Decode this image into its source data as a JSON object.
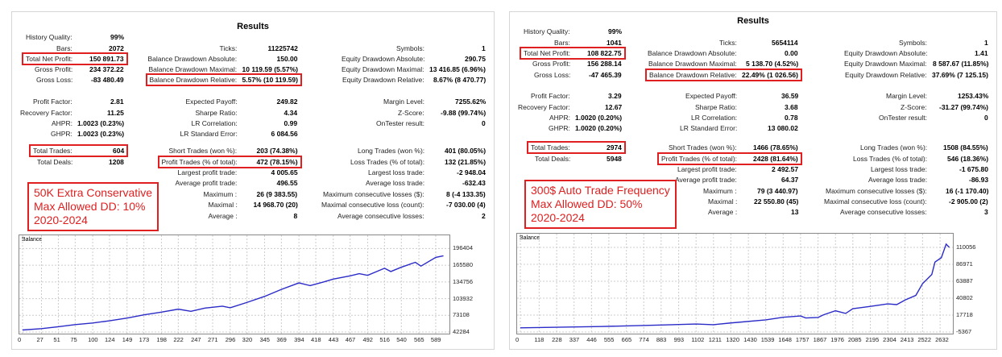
{
  "panels": [
    {
      "title": "Results",
      "note": [
        "50K Extra Conservative",
        "Max Allowed DD: 10%",
        "2020-2024"
      ],
      "rows": [
        [
          [
            "History Quality:",
            "99%"
          ],
          null,
          null
        ],
        [
          [
            "Bars:",
            "2072"
          ],
          [
            "Ticks:",
            "11225742"
          ],
          [
            "Symbols:",
            "1"
          ]
        ],
        [
          [
            "Total Net Profit:",
            "150 891.73",
            true
          ],
          [
            "Balance Drawdown Absolute:",
            "150.00"
          ],
          [
            "Equity Drawdown Absolute:",
            "290.75"
          ]
        ],
        [
          [
            "Gross Profit:",
            "234 372.22"
          ],
          [
            "Balance Drawdown Maximal:",
            "10 119.59 (5.57%)"
          ],
          [
            "Equity Drawdown Maximal:",
            "13 416.85 (6.96%)"
          ]
        ],
        [
          [
            "Gross Loss:",
            "-83 480.49"
          ],
          [
            "Balance Drawdown Relative:",
            "5.57% (10 119.59)",
            true
          ],
          [
            "Equity Drawdown Relative:",
            "8.67% (8 470.77)"
          ]
        ],
        [
          [
            "Profit Factor:",
            "2.81"
          ],
          [
            "Expected Payoff:",
            "249.82"
          ],
          [
            "Margin Level:",
            "7255.62%"
          ]
        ],
        [
          [
            "Recovery Factor:",
            "11.25"
          ],
          [
            "Sharpe Ratio:",
            "4.34"
          ],
          [
            "Z-Score:",
            "-9.88 (99.74%)"
          ]
        ],
        [
          [
            "AHPR:",
            "1.0023 (0.23%)"
          ],
          [
            "LR Correlation:",
            "0.99"
          ],
          [
            "OnTester result:",
            "0"
          ]
        ],
        [
          [
            "GHPR:",
            "1.0023 (0.23%)"
          ],
          [
            "LR Standard Error:",
            "6 084.56"
          ],
          null
        ],
        [
          [
            "Total Trades:",
            "604",
            true
          ],
          [
            "Short Trades (won %):",
            "203 (74.38%)"
          ],
          [
            "Long Trades (won %):",
            "401 (80.05%)"
          ]
        ],
        [
          [
            "Total Deals:",
            "1208"
          ],
          [
            "Profit Trades (% of total):",
            "472 (78.15%)",
            true
          ],
          [
            "Loss Trades (% of total):",
            "132 (21.85%)"
          ]
        ],
        [
          null,
          [
            "Largest profit trade:",
            "4 005.65"
          ],
          [
            "Largest loss trade:",
            "-2 948.04"
          ]
        ],
        [
          null,
          [
            "Average profit trade:",
            "496.55"
          ],
          [
            "Average loss trade:",
            "-632.43"
          ]
        ],
        [
          null,
          [
            "Maximum :",
            "26 (9 383.55)"
          ],
          [
            "Maximum consecutive losses ($):",
            "8 (-4 133.35)"
          ]
        ],
        [
          null,
          [
            "Maximal :",
            "14 968.70 (20)"
          ],
          [
            "Maximal consecutive loss (count):",
            "-7 030.00 (4)"
          ]
        ],
        [
          null,
          [
            "Average :",
            "8"
          ],
          [
            "Average consecutive losses:",
            "2"
          ]
        ]
      ],
      "chart_data": {
        "type": "line",
        "title": "Balance",
        "x_ticks": [
          "0",
          "27",
          "51",
          "75",
          "100",
          "124",
          "149",
          "173",
          "198",
          "222",
          "247",
          "271",
          "296",
          "320",
          "345",
          "369",
          "394",
          "418",
          "443",
          "467",
          "492",
          "516",
          "540",
          "565",
          "589"
        ],
        "y_ticks": [
          "196404",
          "165580",
          "134756",
          "103932",
          "73108",
          "42284"
        ],
        "xlim": [
          0,
          604
        ],
        "ylim": [
          42284,
          203000
        ],
        "x": [
          0,
          27,
          51,
          75,
          100,
          124,
          149,
          173,
          198,
          222,
          240,
          260,
          285,
          296,
          320,
          345,
          369,
          394,
          410,
          430,
          443,
          467,
          480,
          492,
          516,
          525,
          540,
          560,
          568,
          589,
          600
        ],
        "y": [
          46000,
          48500,
          52000,
          56000,
          59000,
          63000,
          68000,
          74000,
          79000,
          84500,
          80500,
          86500,
          90000,
          87000,
          97000,
          108000,
          121000,
          133000,
          128000,
          135000,
          140000,
          146000,
          150000,
          147000,
          160000,
          154000,
          162000,
          171000,
          164000,
          180000,
          183000
        ]
      }
    },
    {
      "title": "Results",
      "note": [
        "300$ Auto Trade Frequency",
        "Max Allowed DD: 50%",
        "2020-2024"
      ],
      "rows": [
        [
          [
            "History Quality:",
            "99%"
          ],
          null,
          null
        ],
        [
          [
            "Bars:",
            "1041"
          ],
          [
            "Ticks:",
            "5654114"
          ],
          [
            "Symbols:",
            "1"
          ]
        ],
        [
          [
            "Total Net Profit:",
            "108 822.75",
            true
          ],
          [
            "Balance Drawdown Absolute:",
            "0.00"
          ],
          [
            "Equity Drawdown Absolute:",
            "1.41"
          ]
        ],
        [
          [
            "Gross Profit:",
            "156 288.14"
          ],
          [
            "Balance Drawdown Maximal:",
            "5 138.70 (4.52%)"
          ],
          [
            "Equity Drawdown Maximal:",
            "8 587.67 (11.85%)"
          ]
        ],
        [
          [
            "Gross Loss:",
            "-47 465.39"
          ],
          [
            "Balance Drawdown Relative:",
            "22.49% (1 026.56)",
            true
          ],
          [
            "Equity Drawdown Relative:",
            "37.69% (7 125.15)"
          ]
        ],
        [
          [
            "Profit Factor:",
            "3.29"
          ],
          [
            "Expected Payoff:",
            "36.59"
          ],
          [
            "Margin Level:",
            "1253.43%"
          ]
        ],
        [
          [
            "Recovery Factor:",
            "12.67"
          ],
          [
            "Sharpe Ratio:",
            "3.68"
          ],
          [
            "Z-Score:",
            "-31.27 (99.74%)"
          ]
        ],
        [
          [
            "AHPR:",
            "1.0020 (0.20%)"
          ],
          [
            "LR Correlation:",
            "0.78"
          ],
          [
            "OnTester result:",
            "0"
          ]
        ],
        [
          [
            "GHPR:",
            "1.0020 (0.20%)"
          ],
          [
            "LR Standard Error:",
            "13 080.02"
          ],
          null
        ],
        [
          [
            "Total Trades:",
            "2974",
            true
          ],
          [
            "Short Trades (won %):",
            "1466 (78.65%)"
          ],
          [
            "Long Trades (won %):",
            "1508 (84.55%)"
          ]
        ],
        [
          [
            "Total Deals:",
            "5948"
          ],
          [
            "Profit Trades (% of total):",
            "2428 (81.64%)",
            true
          ],
          [
            "Loss Trades (% of total):",
            "546 (18.36%)"
          ]
        ],
        [
          null,
          [
            "Largest profit trade:",
            "2 492.57"
          ],
          [
            "Largest loss trade:",
            "-1 675.80"
          ]
        ],
        [
          null,
          [
            "Average profit trade:",
            "64.37"
          ],
          [
            "Average loss trade:",
            "-86.93"
          ]
        ],
        [
          null,
          [
            "Maximum :",
            "79 (3 440.97)"
          ],
          [
            "Maximum consecutive losses ($):",
            "16 (-1 170.40)"
          ]
        ],
        [
          null,
          [
            "Maximal :",
            "22 550.80 (45)"
          ],
          [
            "Maximal consecutive loss (count):",
            "-2 905.00 (2)"
          ]
        ],
        [
          null,
          [
            "Average :",
            "13"
          ],
          [
            "Average consecutive losses:",
            "3"
          ]
        ]
      ],
      "chart_data": {
        "type": "line",
        "title": "Balance",
        "x_ticks": [
          "0",
          "118",
          "228",
          "337",
          "446",
          "555",
          "665",
          "774",
          "883",
          "993",
          "1102",
          "1211",
          "1320",
          "1430",
          "1539",
          "1648",
          "1757",
          "1867",
          "1976",
          "2085",
          "2195",
          "2304",
          "2413",
          "2522",
          "2632"
        ],
        "y_ticks": [
          "110056",
          "86971",
          "63887",
          "40802",
          "17718",
          "-5367"
        ],
        "xlim": [
          0,
          2692
        ],
        "ylim": [
          -5367,
          115500
        ],
        "x": [
          0,
          500,
          883,
          1102,
          1211,
          1320,
          1539,
          1648,
          1757,
          1790,
          1867,
          1900,
          1976,
          2040,
          2085,
          2195,
          2304,
          2360,
          2413,
          2480,
          2522,
          2580,
          2600,
          2640,
          2670,
          2690
        ],
        "y": [
          300,
          2100,
          4200,
          5600,
          4600,
          7000,
          11200,
          14800,
          16500,
          13800,
          14500,
          18000,
          23600,
          20000,
          26400,
          29600,
          33000,
          32000,
          38300,
          44600,
          60500,
          73000,
          90000,
          96000,
          114500,
          110000
        ]
      }
    }
  ]
}
